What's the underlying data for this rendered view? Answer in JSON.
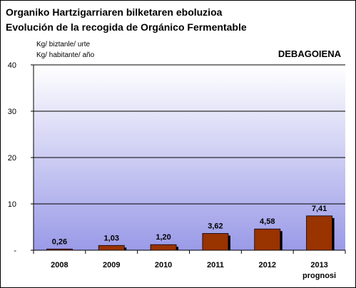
{
  "header": {
    "title_line1": "Organiko Hartzigarriaren bilketaren eboluzioa",
    "title_line2": "Evolución de la recogida de Orgánico Fermentable",
    "unit_line1": "Kg/ biztanle/ urte",
    "unit_line2": "Kg/ habitante/ año",
    "region": "DEBAGOIENA"
  },
  "chart_data": {
    "type": "bar",
    "title": "Organiko Hartzigarriaren bilketaren eboluzioa / Evolución de la recogida de Orgánico Fermentable",
    "categories": [
      "2008",
      "2009",
      "2010",
      "2011",
      "2012",
      "2013"
    ],
    "category_sublabels": [
      "",
      "",
      "",
      "",
      "",
      "prognosi"
    ],
    "values": [
      0.26,
      1.03,
      1.2,
      3.62,
      4.58,
      7.41
    ],
    "data_labels": [
      "0,26",
      "1,03",
      "1,20",
      "3,62",
      "4,58",
      "7,41"
    ],
    "ylim": [
      0,
      40
    ],
    "yticks": [
      0,
      10,
      20,
      30,
      40
    ],
    "ytick_labels": [
      "-",
      "10",
      "20",
      "30",
      "40"
    ],
    "grid": true,
    "colors": {
      "bar": "#993300",
      "bar_shadow": "#000000",
      "plot_gradient_top": "#ffffff",
      "plot_gradient_bottom": "#9a9ae8"
    }
  }
}
